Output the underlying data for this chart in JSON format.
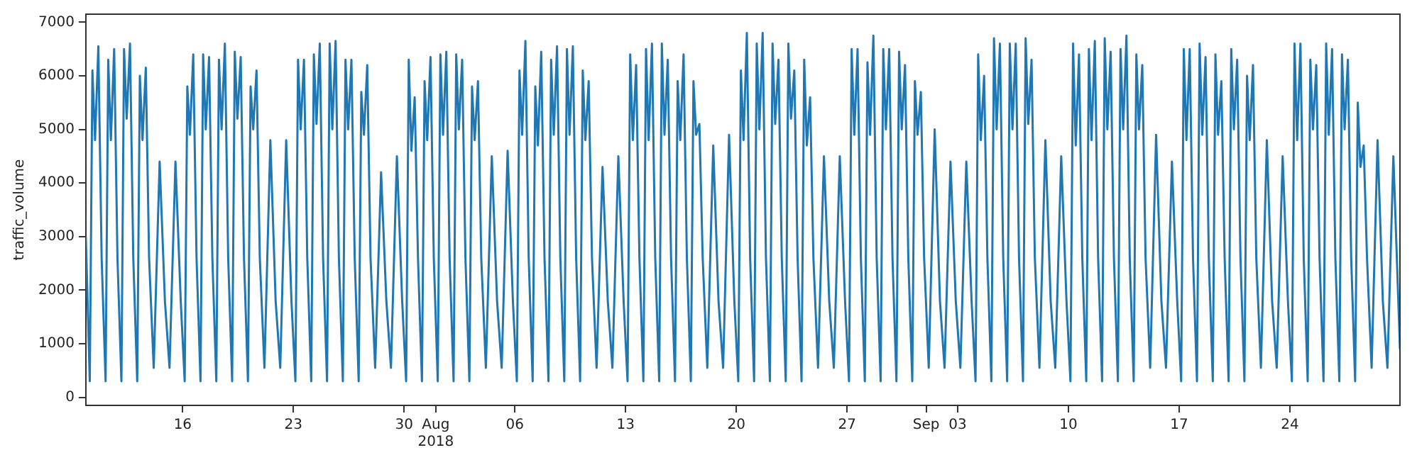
{
  "chart_data": {
    "type": "line",
    "ylabel": "traffic_volume",
    "grid": false,
    "legend": false,
    "marker": "none",
    "line_style": "solid",
    "xlim": [
      "2018-07-09T21:00",
      "2018-09-30T23:00"
    ],
    "ylim": [
      -150,
      7150
    ],
    "yticks": [
      0,
      1000,
      2000,
      3000,
      4000,
      5000,
      6000,
      7000
    ],
    "xticks": [
      {
        "value": "2018-07-16",
        "label": "16"
      },
      {
        "value": "2018-07-23",
        "label": "23"
      },
      {
        "value": "2018-07-30",
        "label": "30"
      },
      {
        "value": "2018-08-01",
        "label": "Aug\n2018"
      },
      {
        "value": "2018-08-06",
        "label": "06"
      },
      {
        "value": "2018-08-13",
        "label": "13"
      },
      {
        "value": "2018-08-20",
        "label": "20"
      },
      {
        "value": "2018-08-27",
        "label": "27"
      },
      {
        "value": "2018-09-01",
        "label": "Sep"
      },
      {
        "value": "2018-09-03",
        "label": "03"
      },
      {
        "value": "2018-09-10",
        "label": "10"
      },
      {
        "value": "2018-09-17",
        "label": "17"
      },
      {
        "value": "2018-09-24",
        "label": "24"
      }
    ],
    "series": [
      {
        "color": "#1f77b4",
        "x": [
          "2018-07-09T21:00",
          "2018-07-10T03:00",
          "2018-07-10T07:00",
          "2018-07-10T11:00",
          "2018-07-10T16:00",
          "2018-07-10T21:00",
          "2018-07-11T03:00",
          "2018-07-11T07:00",
          "2018-07-11T11:00",
          "2018-07-11T16:00",
          "2018-07-11T21:00",
          "2018-07-12T03:00",
          "2018-07-12T07:00",
          "2018-07-12T11:00",
          "2018-07-12T16:00",
          "2018-07-12T21:00",
          "2018-07-13T03:00",
          "2018-07-13T07:00",
          "2018-07-13T11:00",
          "2018-07-13T16:00",
          "2018-07-13T21:00",
          "2018-07-14T04:00",
          "2018-07-14T13:00",
          "2018-07-14T21:00",
          "2018-07-15T04:00",
          "2018-07-15T13:00",
          "2018-07-15T21:00",
          "2018-07-16T03:00",
          "2018-07-16T07:00",
          "2018-07-16T11:00",
          "2018-07-16T16:00",
          "2018-07-16T21:00",
          "2018-07-17T03:00",
          "2018-07-17T07:00",
          "2018-07-17T11:00",
          "2018-07-17T16:00",
          "2018-07-17T21:00",
          "2018-07-18T03:00",
          "2018-07-18T07:00",
          "2018-07-18T11:00",
          "2018-07-18T16:00",
          "2018-07-18T21:00",
          "2018-07-19T03:00",
          "2018-07-19T07:00",
          "2018-07-19T11:00",
          "2018-07-19T16:00",
          "2018-07-19T21:00",
          "2018-07-20T03:00",
          "2018-07-20T07:00",
          "2018-07-20T11:00",
          "2018-07-20T16:00",
          "2018-07-20T21:00",
          "2018-07-21T04:00",
          "2018-07-21T13:00",
          "2018-07-21T21:00",
          "2018-07-22T04:00",
          "2018-07-22T13:00",
          "2018-07-22T21:00",
          "2018-07-23T03:00",
          "2018-07-23T07:00",
          "2018-07-23T11:00",
          "2018-07-23T16:00",
          "2018-07-23T21:00",
          "2018-07-24T03:00",
          "2018-07-24T07:00",
          "2018-07-24T11:00",
          "2018-07-24T16:00",
          "2018-07-24T21:00",
          "2018-07-25T03:00",
          "2018-07-25T07:00",
          "2018-07-25T11:00",
          "2018-07-25T16:00",
          "2018-07-25T21:00",
          "2018-07-26T03:00",
          "2018-07-26T07:00",
          "2018-07-26T11:00",
          "2018-07-26T16:00",
          "2018-07-26T21:00",
          "2018-07-27T03:00",
          "2018-07-27T07:00",
          "2018-07-27T11:00",
          "2018-07-27T16:00",
          "2018-07-27T21:00",
          "2018-07-28T04:00",
          "2018-07-28T13:00",
          "2018-07-28T21:00",
          "2018-07-29T04:00",
          "2018-07-29T13:00",
          "2018-07-29T21:00",
          "2018-07-30T03:00",
          "2018-07-30T07:00",
          "2018-07-30T11:00",
          "2018-07-30T16:00",
          "2018-07-30T21:00",
          "2018-07-31T03:00",
          "2018-07-31T07:00",
          "2018-07-31T11:00",
          "2018-07-31T16:00",
          "2018-07-31T21:00",
          "2018-08-01T03:00",
          "2018-08-01T07:00",
          "2018-08-01T11:00",
          "2018-08-01T16:00",
          "2018-08-01T21:00",
          "2018-08-02T03:00",
          "2018-08-02T07:00",
          "2018-08-02T11:00",
          "2018-08-02T16:00",
          "2018-08-02T21:00",
          "2018-08-03T03:00",
          "2018-08-03T07:00",
          "2018-08-03T11:00",
          "2018-08-03T16:00",
          "2018-08-03T21:00",
          "2018-08-04T04:00",
          "2018-08-04T13:00",
          "2018-08-04T21:00",
          "2018-08-05T04:00",
          "2018-08-05T13:00",
          "2018-08-05T21:00",
          "2018-08-06T03:00",
          "2018-08-06T07:00",
          "2018-08-06T11:00",
          "2018-08-06T16:00",
          "2018-08-06T21:00",
          "2018-08-07T03:00",
          "2018-08-07T07:00",
          "2018-08-07T11:00",
          "2018-08-07T16:00",
          "2018-08-07T21:00",
          "2018-08-08T03:00",
          "2018-08-08T07:00",
          "2018-08-08T11:00",
          "2018-08-08T16:00",
          "2018-08-08T21:00",
          "2018-08-09T03:00",
          "2018-08-09T07:00",
          "2018-08-09T11:00",
          "2018-08-09T16:00",
          "2018-08-09T21:00",
          "2018-08-10T03:00",
          "2018-08-10T07:00",
          "2018-08-10T11:00",
          "2018-08-10T16:00",
          "2018-08-10T21:00",
          "2018-08-11T04:00",
          "2018-08-11T13:00",
          "2018-08-11T21:00",
          "2018-08-12T04:00",
          "2018-08-12T13:00",
          "2018-08-12T21:00",
          "2018-08-13T03:00",
          "2018-08-13T07:00",
          "2018-08-13T11:00",
          "2018-08-13T16:00",
          "2018-08-13T21:00",
          "2018-08-14T03:00",
          "2018-08-14T07:00",
          "2018-08-14T11:00",
          "2018-08-14T16:00",
          "2018-08-14T21:00",
          "2018-08-15T03:00",
          "2018-08-15T07:00",
          "2018-08-15T11:00",
          "2018-08-15T16:00",
          "2018-08-15T21:00",
          "2018-08-16T03:00",
          "2018-08-16T07:00",
          "2018-08-16T11:00",
          "2018-08-16T16:00",
          "2018-08-16T21:00",
          "2018-08-17T03:00",
          "2018-08-17T07:00",
          "2018-08-17T11:00",
          "2018-08-17T16:00",
          "2018-08-17T21:00",
          "2018-08-18T04:00",
          "2018-08-18T13:00",
          "2018-08-18T21:00",
          "2018-08-19T04:00",
          "2018-08-19T13:00",
          "2018-08-19T21:00",
          "2018-08-20T03:00",
          "2018-08-20T07:00",
          "2018-08-20T11:00",
          "2018-08-20T16:00",
          "2018-08-20T21:00",
          "2018-08-21T03:00",
          "2018-08-21T07:00",
          "2018-08-21T11:00",
          "2018-08-21T16:00",
          "2018-08-21T21:00",
          "2018-08-22T03:00",
          "2018-08-22T07:00",
          "2018-08-22T11:00",
          "2018-08-22T16:00",
          "2018-08-22T21:00",
          "2018-08-23T03:00",
          "2018-08-23T07:00",
          "2018-08-23T11:00",
          "2018-08-23T16:00",
          "2018-08-23T21:00",
          "2018-08-24T03:00",
          "2018-08-24T07:00",
          "2018-08-24T11:00",
          "2018-08-24T16:00",
          "2018-08-24T21:00",
          "2018-08-25T04:00",
          "2018-08-25T13:00",
          "2018-08-25T21:00",
          "2018-08-26T04:00",
          "2018-08-26T13:00",
          "2018-08-26T21:00",
          "2018-08-27T03:00",
          "2018-08-27T07:00",
          "2018-08-27T11:00",
          "2018-08-27T16:00",
          "2018-08-27T21:00",
          "2018-08-28T03:00",
          "2018-08-28T07:00",
          "2018-08-28T11:00",
          "2018-08-28T16:00",
          "2018-08-28T21:00",
          "2018-08-29T03:00",
          "2018-08-29T07:00",
          "2018-08-29T11:00",
          "2018-08-29T16:00",
          "2018-08-29T21:00",
          "2018-08-30T03:00",
          "2018-08-30T07:00",
          "2018-08-30T11:00",
          "2018-08-30T16:00",
          "2018-08-30T21:00",
          "2018-08-31T03:00",
          "2018-08-31T07:00",
          "2018-08-31T11:00",
          "2018-08-31T16:00",
          "2018-08-31T21:00",
          "2018-09-01T04:00",
          "2018-09-01T13:00",
          "2018-09-01T21:00",
          "2018-09-02T04:00",
          "2018-09-02T13:00",
          "2018-09-02T21:00",
          "2018-09-03T04:00",
          "2018-09-03T13:00",
          "2018-09-03T21:00",
          "2018-09-04T03:00",
          "2018-09-04T07:00",
          "2018-09-04T11:00",
          "2018-09-04T16:00",
          "2018-09-04T21:00",
          "2018-09-05T03:00",
          "2018-09-05T07:00",
          "2018-09-05T11:00",
          "2018-09-05T16:00",
          "2018-09-05T21:00",
          "2018-09-06T03:00",
          "2018-09-06T07:00",
          "2018-09-06T11:00",
          "2018-09-06T16:00",
          "2018-09-06T21:00",
          "2018-09-07T03:00",
          "2018-09-07T07:00",
          "2018-09-07T11:00",
          "2018-09-07T16:00",
          "2018-09-07T21:00",
          "2018-09-08T04:00",
          "2018-09-08T13:00",
          "2018-09-08T21:00",
          "2018-09-09T04:00",
          "2018-09-09T13:00",
          "2018-09-09T21:00",
          "2018-09-10T03:00",
          "2018-09-10T07:00",
          "2018-09-10T11:00",
          "2018-09-10T16:00",
          "2018-09-10T21:00",
          "2018-09-11T03:00",
          "2018-09-11T07:00",
          "2018-09-11T11:00",
          "2018-09-11T16:00",
          "2018-09-11T21:00",
          "2018-09-12T03:00",
          "2018-09-12T07:00",
          "2018-09-12T11:00",
          "2018-09-12T16:00",
          "2018-09-12T21:00",
          "2018-09-13T03:00",
          "2018-09-13T07:00",
          "2018-09-13T11:00",
          "2018-09-13T16:00",
          "2018-09-13T21:00",
          "2018-09-14T03:00",
          "2018-09-14T07:00",
          "2018-09-14T11:00",
          "2018-09-14T16:00",
          "2018-09-14T21:00",
          "2018-09-15T04:00",
          "2018-09-15T13:00",
          "2018-09-15T21:00",
          "2018-09-16T04:00",
          "2018-09-16T13:00",
          "2018-09-16T21:00",
          "2018-09-17T03:00",
          "2018-09-17T07:00",
          "2018-09-17T11:00",
          "2018-09-17T16:00",
          "2018-09-17T21:00",
          "2018-09-18T03:00",
          "2018-09-18T07:00",
          "2018-09-18T11:00",
          "2018-09-18T16:00",
          "2018-09-18T21:00",
          "2018-09-19T03:00",
          "2018-09-19T07:00",
          "2018-09-19T11:00",
          "2018-09-19T16:00",
          "2018-09-19T21:00",
          "2018-09-20T03:00",
          "2018-09-20T07:00",
          "2018-09-20T11:00",
          "2018-09-20T16:00",
          "2018-09-20T21:00",
          "2018-09-21T03:00",
          "2018-09-21T07:00",
          "2018-09-21T11:00",
          "2018-09-21T16:00",
          "2018-09-21T21:00",
          "2018-09-22T04:00",
          "2018-09-22T13:00",
          "2018-09-22T21:00",
          "2018-09-23T04:00",
          "2018-09-23T13:00",
          "2018-09-23T21:00",
          "2018-09-24T03:00",
          "2018-09-24T07:00",
          "2018-09-24T11:00",
          "2018-09-24T16:00",
          "2018-09-24T21:00",
          "2018-09-25T03:00",
          "2018-09-25T07:00",
          "2018-09-25T11:00",
          "2018-09-25T16:00",
          "2018-09-25T21:00",
          "2018-09-26T03:00",
          "2018-09-26T07:00",
          "2018-09-26T11:00",
          "2018-09-26T16:00",
          "2018-09-26T21:00",
          "2018-09-27T03:00",
          "2018-09-27T07:00",
          "2018-09-27T11:00",
          "2018-09-27T16:00",
          "2018-09-27T21:00",
          "2018-09-28T03:00",
          "2018-09-28T07:00",
          "2018-09-28T11:00",
          "2018-09-28T16:00",
          "2018-09-28T21:00",
          "2018-09-29T04:00",
          "2018-09-29T13:00",
          "2018-09-29T21:00",
          "2018-09-30T04:00",
          "2018-09-30T13:00",
          "2018-09-30T23:00"
        ],
        "values": [
          3000,
          300,
          6100,
          4800,
          6550,
          2600,
          300,
          6300,
          4800,
          6500,
          2600,
          300,
          6500,
          5200,
          6600,
          2600,
          300,
          6000,
          4800,
          6150,
          2600,
          550,
          4400,
          1800,
          550,
          4400,
          1800,
          300,
          5800,
          4900,
          6400,
          2600,
          300,
          6400,
          5000,
          6350,
          2600,
          300,
          6300,
          5000,
          6600,
          2600,
          300,
          6450,
          5200,
          6350,
          2600,
          300,
          5800,
          5000,
          6100,
          2600,
          550,
          4800,
          1800,
          550,
          4800,
          1800,
          300,
          6300,
          5000,
          6300,
          2600,
          300,
          6400,
          5100,
          6600,
          2600,
          300,
          6600,
          5000,
          6650,
          2600,
          300,
          6300,
          5000,
          6300,
          2600,
          300,
          5700,
          4900,
          6200,
          2600,
          550,
          4200,
          1800,
          550,
          4500,
          1800,
          300,
          6300,
          4600,
          5600,
          2600,
          300,
          5900,
          4800,
          6350,
          2600,
          300,
          6400,
          4900,
          6450,
          2600,
          300,
          6400,
          5000,
          6300,
          2600,
          300,
          5800,
          4800,
          5900,
          2600,
          550,
          4500,
          1800,
          550,
          4600,
          1800,
          300,
          6100,
          4900,
          6650,
          2600,
          300,
          5800,
          4700,
          6450,
          2600,
          300,
          6300,
          4900,
          6550,
          2600,
          300,
          6500,
          4900,
          6550,
          2600,
          300,
          6100,
          4800,
          5900,
          2600,
          550,
          4300,
          1800,
          550,
          4500,
          1800,
          300,
          6400,
          4800,
          6200,
          2600,
          300,
          6500,
          4800,
          6600,
          2600,
          300,
          6600,
          4900,
          6300,
          2600,
          300,
          5900,
          4800,
          6400,
          2600,
          300,
          5900,
          4900,
          5100,
          2600,
          550,
          4700,
          1800,
          550,
          4900,
          1800,
          300,
          6100,
          4800,
          6800,
          2600,
          300,
          6600,
          5000,
          6800,
          2600,
          300,
          6600,
          5100,
          6300,
          2600,
          300,
          6600,
          5200,
          6100,
          2600,
          300,
          6300,
          4700,
          5600,
          2600,
          550,
          4500,
          1800,
          550,
          4500,
          1800,
          300,
          6500,
          4900,
          6500,
          2600,
          300,
          6250,
          4900,
          6750,
          2600,
          300,
          6500,
          5000,
          6500,
          2600,
          300,
          6450,
          5000,
          6200,
          2600,
          300,
          5900,
          4900,
          5700,
          2600,
          550,
          5000,
          1800,
          550,
          4400,
          1800,
          550,
          4400,
          1800,
          300,
          6400,
          4800,
          6000,
          2600,
          300,
          6700,
          5000,
          6600,
          2600,
          300,
          6600,
          5000,
          6600,
          2600,
          300,
          6700,
          5100,
          6300,
          2600,
          550,
          4800,
          1800,
          550,
          4500,
          1800,
          300,
          6600,
          4700,
          6400,
          2600,
          300,
          6500,
          4800,
          6650,
          2600,
          300,
          6700,
          5000,
          6450,
          2600,
          300,
          6500,
          5000,
          6750,
          2600,
          300,
          6400,
          5000,
          6200,
          2600,
          550,
          4900,
          1800,
          550,
          4400,
          1800,
          300,
          6500,
          4800,
          6500,
          2600,
          300,
          6600,
          4900,
          6350,
          2600,
          300,
          6400,
          4900,
          5900,
          2600,
          300,
          6500,
          5000,
          6300,
          2600,
          300,
          6000,
          4800,
          6200,
          2600,
          550,
          4800,
          1800,
          550,
          4500,
          1800,
          300,
          6600,
          4800,
          6600,
          2600,
          300,
          6300,
          5000,
          6200,
          2600,
          300,
          6600,
          4900,
          6500,
          2600,
          300,
          6400,
          5000,
          6300,
          2600,
          300,
          5500,
          4300,
          4700,
          2600,
          550,
          4800,
          1800,
          550,
          4500,
          900
        ]
      }
    ]
  }
}
